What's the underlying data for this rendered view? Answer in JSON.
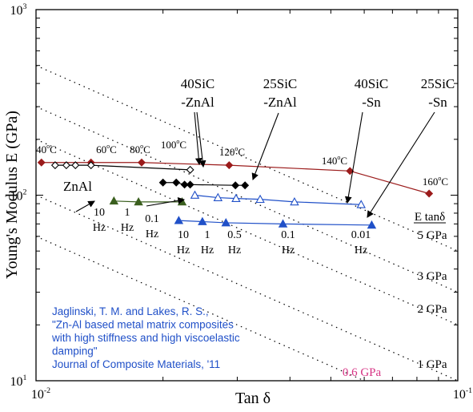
{
  "chart_data": {
    "type": "scatter",
    "xlabel": "Tan δ",
    "ylabel": "Young's Modulus E (GPa)",
    "x_scale": "log",
    "y_scale": "log",
    "xlim": [
      0.01,
      0.1
    ],
    "ylim": [
      10,
      1000
    ],
    "x_ticks": [
      {
        "value": 0.01,
        "base": "10",
        "exp": "-2"
      },
      {
        "value": 0.1,
        "base": "10",
        "exp": "-1"
      }
    ],
    "y_ticks": [
      {
        "value": 10,
        "base": "10",
        "exp": "1"
      },
      {
        "value": 100,
        "base": "10",
        "exp": "2"
      },
      {
        "value": 1000,
        "base": "10",
        "exp": "3"
      }
    ],
    "grid": false,
    "reference_lines": {
      "header": "E tanδ",
      "lines": [
        {
          "product": 5,
          "label": "5 GPa",
          "color": "#000000"
        },
        {
          "product": 3,
          "label": "3 GPa",
          "color": "#000000"
        },
        {
          "product": 2,
          "label": "2 GPa",
          "color": "#000000"
        },
        {
          "product": 1,
          "label": "1 GPa",
          "color": "#000000"
        },
        {
          "product": 0.6,
          "label": "0.6 GPa",
          "color": "#d63384"
        }
      ]
    },
    "series": [
      {
        "color": "#9b1b1b",
        "marker": "diamond",
        "fill": "filled",
        "x": [
          0.0103,
          0.0135,
          0.0178,
          0.0287,
          0.0555,
          0.0855
        ],
        "y": [
          150,
          150,
          150,
          145,
          135,
          102
        ]
      },
      {
        "color": "#000000",
        "marker": "diamond",
        "fill": "open",
        "x": [
          0.0111,
          0.0118,
          0.0124,
          0.0135,
          0.0232
        ],
        "y": [
          145,
          145,
          145,
          145,
          137
        ]
      },
      {
        "color": "#000000",
        "marker": "diamond",
        "fill": "filled",
        "x": [
          0.02,
          0.0215,
          0.0225,
          0.0232,
          0.0297,
          0.0313
        ],
        "y": [
          117,
          117,
          114,
          114,
          113,
          113
        ]
      },
      {
        "color": "#3a5f1e",
        "marker": "triangle",
        "fill": "filled",
        "x": [
          0.0153,
          0.0175,
          0.0222
        ],
        "y": [
          93,
          92,
          92
        ]
      },
      {
        "color": "#2050c8",
        "marker": "triangle",
        "fill": "open",
        "x": [
          0.0238,
          0.027,
          0.0298,
          0.034,
          0.041,
          0.059
        ],
        "y": [
          100,
          97,
          96,
          95,
          92,
          89
        ]
      },
      {
        "color": "#2050c8",
        "marker": "triangle",
        "fill": "filled",
        "x": [
          0.0218,
          0.0248,
          0.0282,
          0.0385,
          0.0625
        ],
        "y": [
          73,
          72,
          71,
          70,
          69
        ]
      }
    ],
    "annotations": {
      "temps": [
        {
          "x": 0.0103,
          "y": 150,
          "label": "40",
          "sup": "o",
          "unit": "C"
        },
        {
          "x": 0.0135,
          "y": 150,
          "label": "60",
          "sup": "o",
          "unit": "C"
        },
        {
          "x": 0.0162,
          "y": 150,
          "label": "80",
          "sup": "o",
          "unit": "C"
        },
        {
          "x": 0.0195,
          "y": 152,
          "label": "100",
          "sup": "o",
          "unit": "C"
        },
        {
          "x": 0.0287,
          "y": 145,
          "label": "120",
          "sup": "o",
          "unit": "C"
        },
        {
          "x": 0.0555,
          "y": 135,
          "label": "140",
          "sup": "o",
          "unit": "C"
        },
        {
          "x": 0.0855,
          "y": 102,
          "label": "160",
          "sup": "o",
          "unit": "C"
        }
      ],
      "material_labels": [
        {
          "line1": "40SiC",
          "line2": "-ZnAl"
        },
        {
          "line1": "25SiC",
          "line2": "-ZnAl"
        },
        {
          "line1": "40SiC",
          "line2": "-Sn"
        },
        {
          "line1": "25SiC",
          "line2": "-Sn"
        },
        {
          "line1": "ZnAl",
          "line2": ""
        }
      ],
      "freq_labels_a": [
        {
          "value": "10",
          "unit": "Hz"
        },
        {
          "value": "1",
          "unit": "Hz"
        },
        {
          "value": "0.1",
          "unit": "Hz"
        }
      ],
      "freq_labels_b": [
        {
          "value": "10",
          "unit": "Hz"
        },
        {
          "value": "1",
          "unit": "Hz"
        },
        {
          "value": "0.5",
          "unit": "Hz"
        },
        {
          "value": "0.1",
          "unit": "Hz"
        },
        {
          "value": "0.01",
          "unit": "Hz"
        }
      ]
    },
    "citation": [
      "Jaglinski, T. M. and Lakes, R. S.,",
      "\"Zn-Al based metal matrix composites",
      "with high stiffness and high viscoelastic",
      "damping\"",
      "Journal of Composite Materials, '11"
    ],
    "citation_color": "#2050c8"
  }
}
